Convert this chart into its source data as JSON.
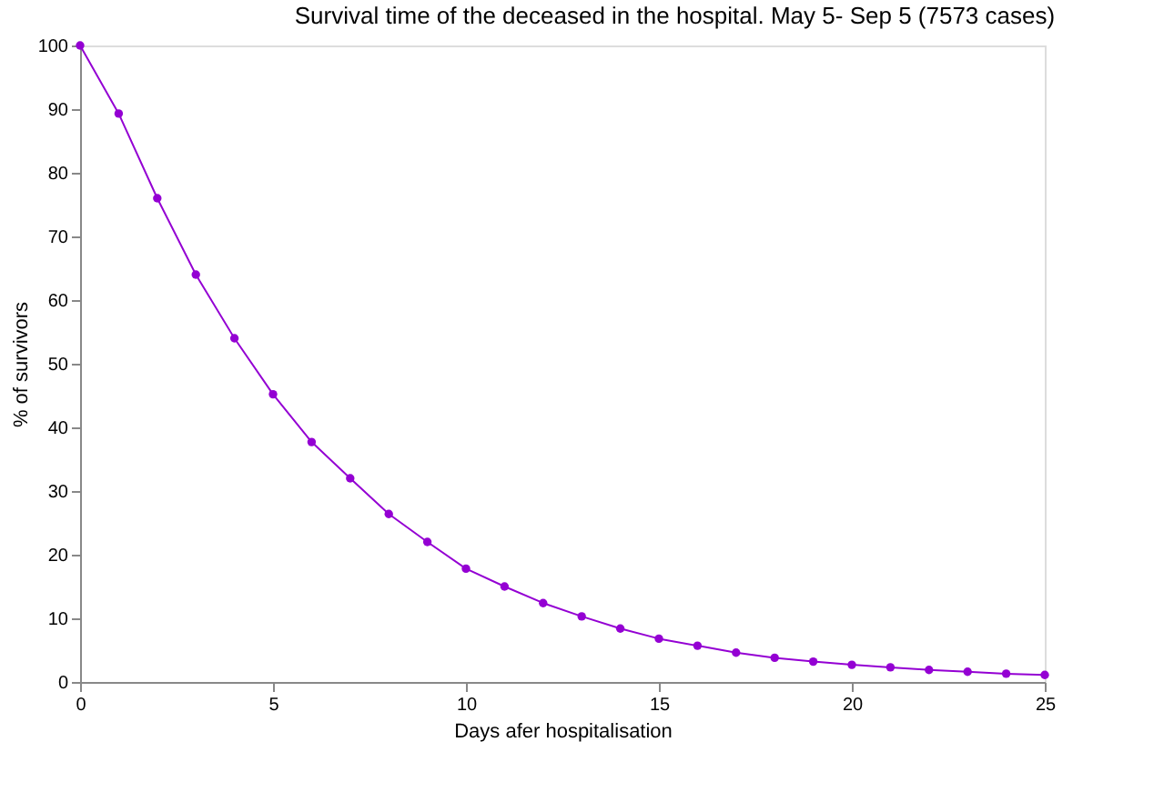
{
  "chart_data": {
    "type": "line",
    "title": "Survival time of the deceased in the hospital. May 5- Sep 5 (7573 cases)",
    "xlabel": "Days afer hospitalisation",
    "ylabel": "% of survivors",
    "x": [
      0,
      1,
      2,
      3,
      4,
      5,
      6,
      7,
      8,
      9,
      10,
      11,
      12,
      13,
      14,
      15,
      16,
      17,
      18,
      19,
      20,
      21,
      22,
      23,
      24,
      25
    ],
    "series": [
      {
        "color": "#9400d3",
        "values": [
          100,
          89.3,
          76,
          64,
          54,
          45.2,
          37.7,
          32,
          26.4,
          22,
          17.8,
          15,
          12.4,
          10.3,
          8.4,
          6.8,
          5.7,
          4.6,
          3.8,
          3.2,
          2.7,
          2.3,
          1.9,
          1.6,
          1.3,
          1.1
        ]
      }
    ],
    "xlim": [
      0,
      25
    ],
    "xticks": [
      0,
      5,
      10,
      15,
      20,
      25
    ],
    "ylim": [
      0,
      100
    ],
    "yticks": [
      0,
      10,
      20,
      30,
      40,
      50,
      60,
      70,
      80,
      90,
      100
    ],
    "grid": false,
    "marker": "circle",
    "line_style": "solid"
  }
}
